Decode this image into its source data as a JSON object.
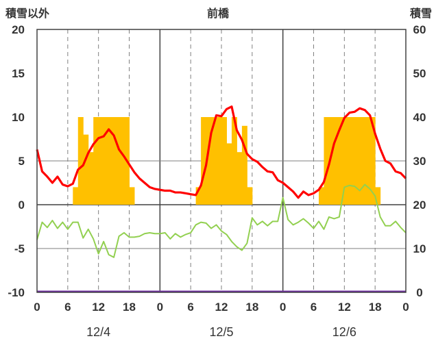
{
  "chart_data": {
    "type": "line",
    "title": "前橋",
    "ylabel_left": "積雪以外",
    "ylabel_right": "積雪",
    "y_left_range": [
      -10,
      20
    ],
    "y_right_range": [
      0,
      60
    ],
    "y_left_ticks": [
      "20",
      "15",
      "10",
      "5",
      "0",
      "-5",
      "-10"
    ],
    "y_right_ticks": [
      "60",
      "50",
      "40",
      "30",
      "20",
      "10",
      "0"
    ],
    "x_tick_labels": [
      "0",
      "6",
      "12",
      "18",
      "0",
      "6",
      "12",
      "18",
      "0",
      "6",
      "12",
      "18",
      "0"
    ],
    "date_labels": [
      "12/4",
      "12/5",
      "12/6"
    ],
    "grid": "vertical dashed at 6/12/18h, solid at day boundaries",
    "x_range_hours": [
      0,
      72
    ],
    "colors": {
      "sunshine": "#FFC000",
      "temperature": "#FF0000",
      "humidity_line": "#92D050",
      "zero_line": "#7030A0"
    },
    "series": [
      {
        "kind": "bars",
        "axis": "left",
        "color": "#FFC000",
        "values": [
          0,
          0,
          0,
          0,
          0,
          0,
          0,
          2,
          10,
          8,
          6,
          10,
          10,
          10,
          10,
          10,
          10,
          10,
          2,
          0,
          0,
          0,
          0,
          0,
          0,
          0,
          0,
          0,
          0,
          0,
          0,
          2,
          10,
          10,
          10,
          10,
          10,
          7,
          10,
          6,
          9,
          2,
          0,
          0,
          0,
          0,
          0,
          0,
          0,
          0,
          0,
          0,
          0,
          0,
          0,
          2,
          10,
          10,
          10,
          10,
          10,
          10,
          10,
          10,
          10,
          10,
          2,
          0,
          0,
          0,
          0,
          0
        ]
      },
      {
        "kind": "line",
        "axis": "left",
        "color": "#FF0000",
        "values": [
          6.3,
          3.8,
          3.2,
          2.5,
          3.2,
          2.3,
          2.1,
          2.4,
          4.0,
          4.5,
          5.9,
          6.9,
          7.6,
          7.8,
          8.6,
          7.9,
          6.3,
          5.5,
          4.6,
          3.7,
          3.0,
          2.5,
          2.0,
          1.8,
          1.7,
          1.6,
          1.6,
          1.4,
          1.4,
          1.3,
          1.2,
          1.1,
          2.2,
          4.5,
          8.2,
          10.2,
          10.1,
          10.9,
          11.2,
          8.5,
          7.4,
          5.8,
          5.2,
          4.9,
          4.3,
          3.8,
          3.7,
          2.8,
          2.5,
          2.0,
          1.5,
          0.8,
          1.5,
          1.1,
          1.3,
          1.7,
          2.6,
          4.6,
          7.0,
          8.5,
          9.9,
          10.5,
          10.6,
          11.0,
          10.8,
          10.2,
          8.1,
          6.4,
          5.0,
          4.7,
          3.8,
          3.6,
          3.0
        ]
      },
      {
        "kind": "line",
        "axis": "left",
        "color": "#92D050",
        "values": [
          -4.0,
          -2.0,
          -2.6,
          -1.8,
          -2.7,
          -2.0,
          -2.8,
          -2.0,
          -2.0,
          -3.8,
          -2.8,
          -3.9,
          -5.6,
          -4.2,
          -5.7,
          -6.0,
          -3.6,
          -3.2,
          -3.7,
          -3.7,
          -3.6,
          -3.3,
          -3.2,
          -3.3,
          -3.3,
          -3.2,
          -3.9,
          -3.3,
          -3.7,
          -3.4,
          -3.2,
          -2.3,
          -2.0,
          -2.1,
          -2.7,
          -2.3,
          -3.0,
          -3.4,
          -4.2,
          -4.8,
          -5.2,
          -4.4,
          -1.5,
          -2.3,
          -1.9,
          -2.4,
          -1.9,
          -1.9,
          0.8,
          -1.7,
          -2.3,
          -2.0,
          -1.6,
          -2.1,
          -2.7,
          -1.9,
          -2.8,
          -1.4,
          -1.6,
          -1.4,
          2.0,
          2.2,
          2.1,
          1.6,
          2.3,
          1.8,
          1.0,
          -1.4,
          -2.4,
          -2.4,
          -1.9,
          -2.6,
          -3.2
        ]
      },
      {
        "kind": "line",
        "axis": "right",
        "color": "#7030A0",
        "values": [
          0,
          0
        ]
      }
    ]
  }
}
